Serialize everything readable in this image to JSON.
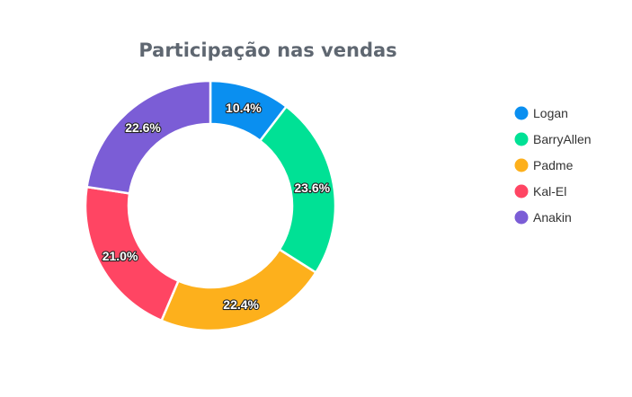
{
  "chart_data": {
    "type": "pie",
    "donut": true,
    "title": "Participação nas vendas",
    "categories": [
      "Logan",
      "BarryAllen",
      "Padme",
      "Kal-El",
      "Anakin"
    ],
    "values": [
      10.4,
      23.6,
      22.4,
      21.0,
      22.6
    ],
    "labels": [
      "10.4%",
      "23.6%",
      "22.4%",
      "21.0%",
      "22.6%"
    ],
    "colors": [
      "#0a8ff0",
      "#00e195",
      "#fdb01c",
      "#ff4563",
      "#7b5dd6"
    ],
    "legend_position": "right"
  }
}
